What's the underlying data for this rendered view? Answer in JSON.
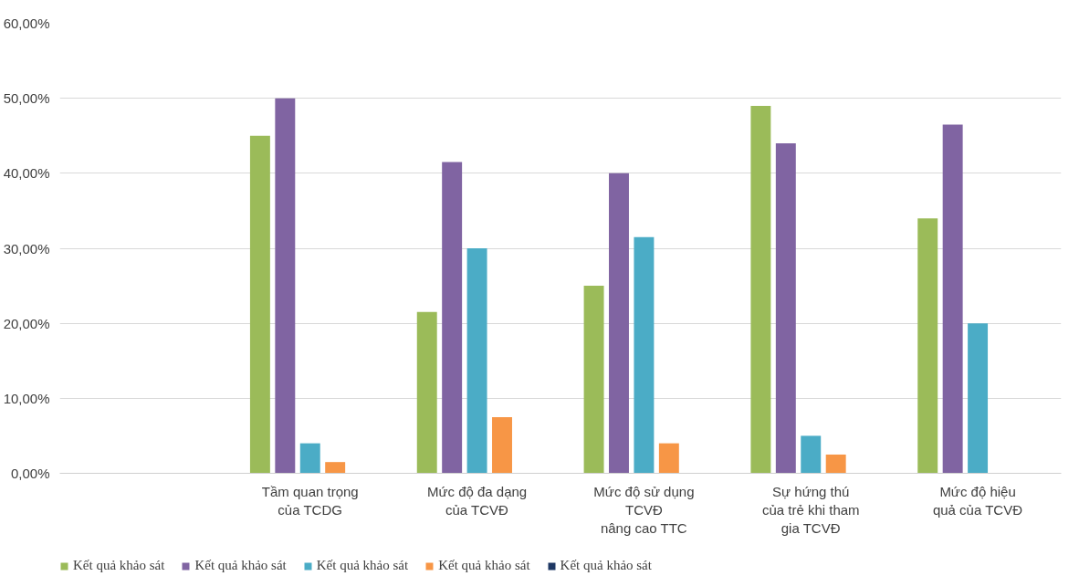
{
  "chart_data": {
    "type": "bar",
    "categories": [
      null,
      "Tầm quan trọng\ncủa TCDG",
      "Mức độ đa dạng\ncủa TCVĐ",
      "Mức độ sử dụng\nTCVĐ\nnâng cao TTC",
      "Sự hứng thú\ncủa trẻ khi tham\ngia TCVĐ",
      "Mức độ hiệu\nquả của TCVĐ"
    ],
    "series": [
      {
        "name": "Kết quả khảo sát",
        "color": "#9bbb59",
        "values": [
          null,
          45,
          21.5,
          25,
          49,
          34
        ]
      },
      {
        "name": "Kết quả khảo sát",
        "color": "#8064a2",
        "values": [
          null,
          50,
          41.5,
          40,
          44,
          46.5
        ]
      },
      {
        "name": "Kết quả khảo sát",
        "color": "#4bacc6",
        "values": [
          null,
          4,
          30,
          31.5,
          5,
          20
        ]
      },
      {
        "name": "Kết quả khảo sát",
        "color": "#f79646",
        "values": [
          null,
          1.5,
          7.5,
          4,
          2.5,
          null
        ]
      },
      {
        "name": "Kết quả khảo sát",
        "color": "#1f3864",
        "values": [
          null,
          null,
          null,
          null,
          null,
          null
        ]
      }
    ],
    "ylim": [
      0,
      60
    ],
    "yticks": [
      {
        "value": 0,
        "label": "0,00%"
      },
      {
        "value": 10,
        "label": "10,00%"
      },
      {
        "value": 20,
        "label": "20,00%"
      },
      {
        "value": 30,
        "label": "30,00%"
      },
      {
        "value": 40,
        "label": "40,00%"
      },
      {
        "value": 50,
        "label": "50,00%"
      },
      {
        "value": 60,
        "label": "60,00%"
      }
    ],
    "grid": "y",
    "legend": "bottom"
  }
}
